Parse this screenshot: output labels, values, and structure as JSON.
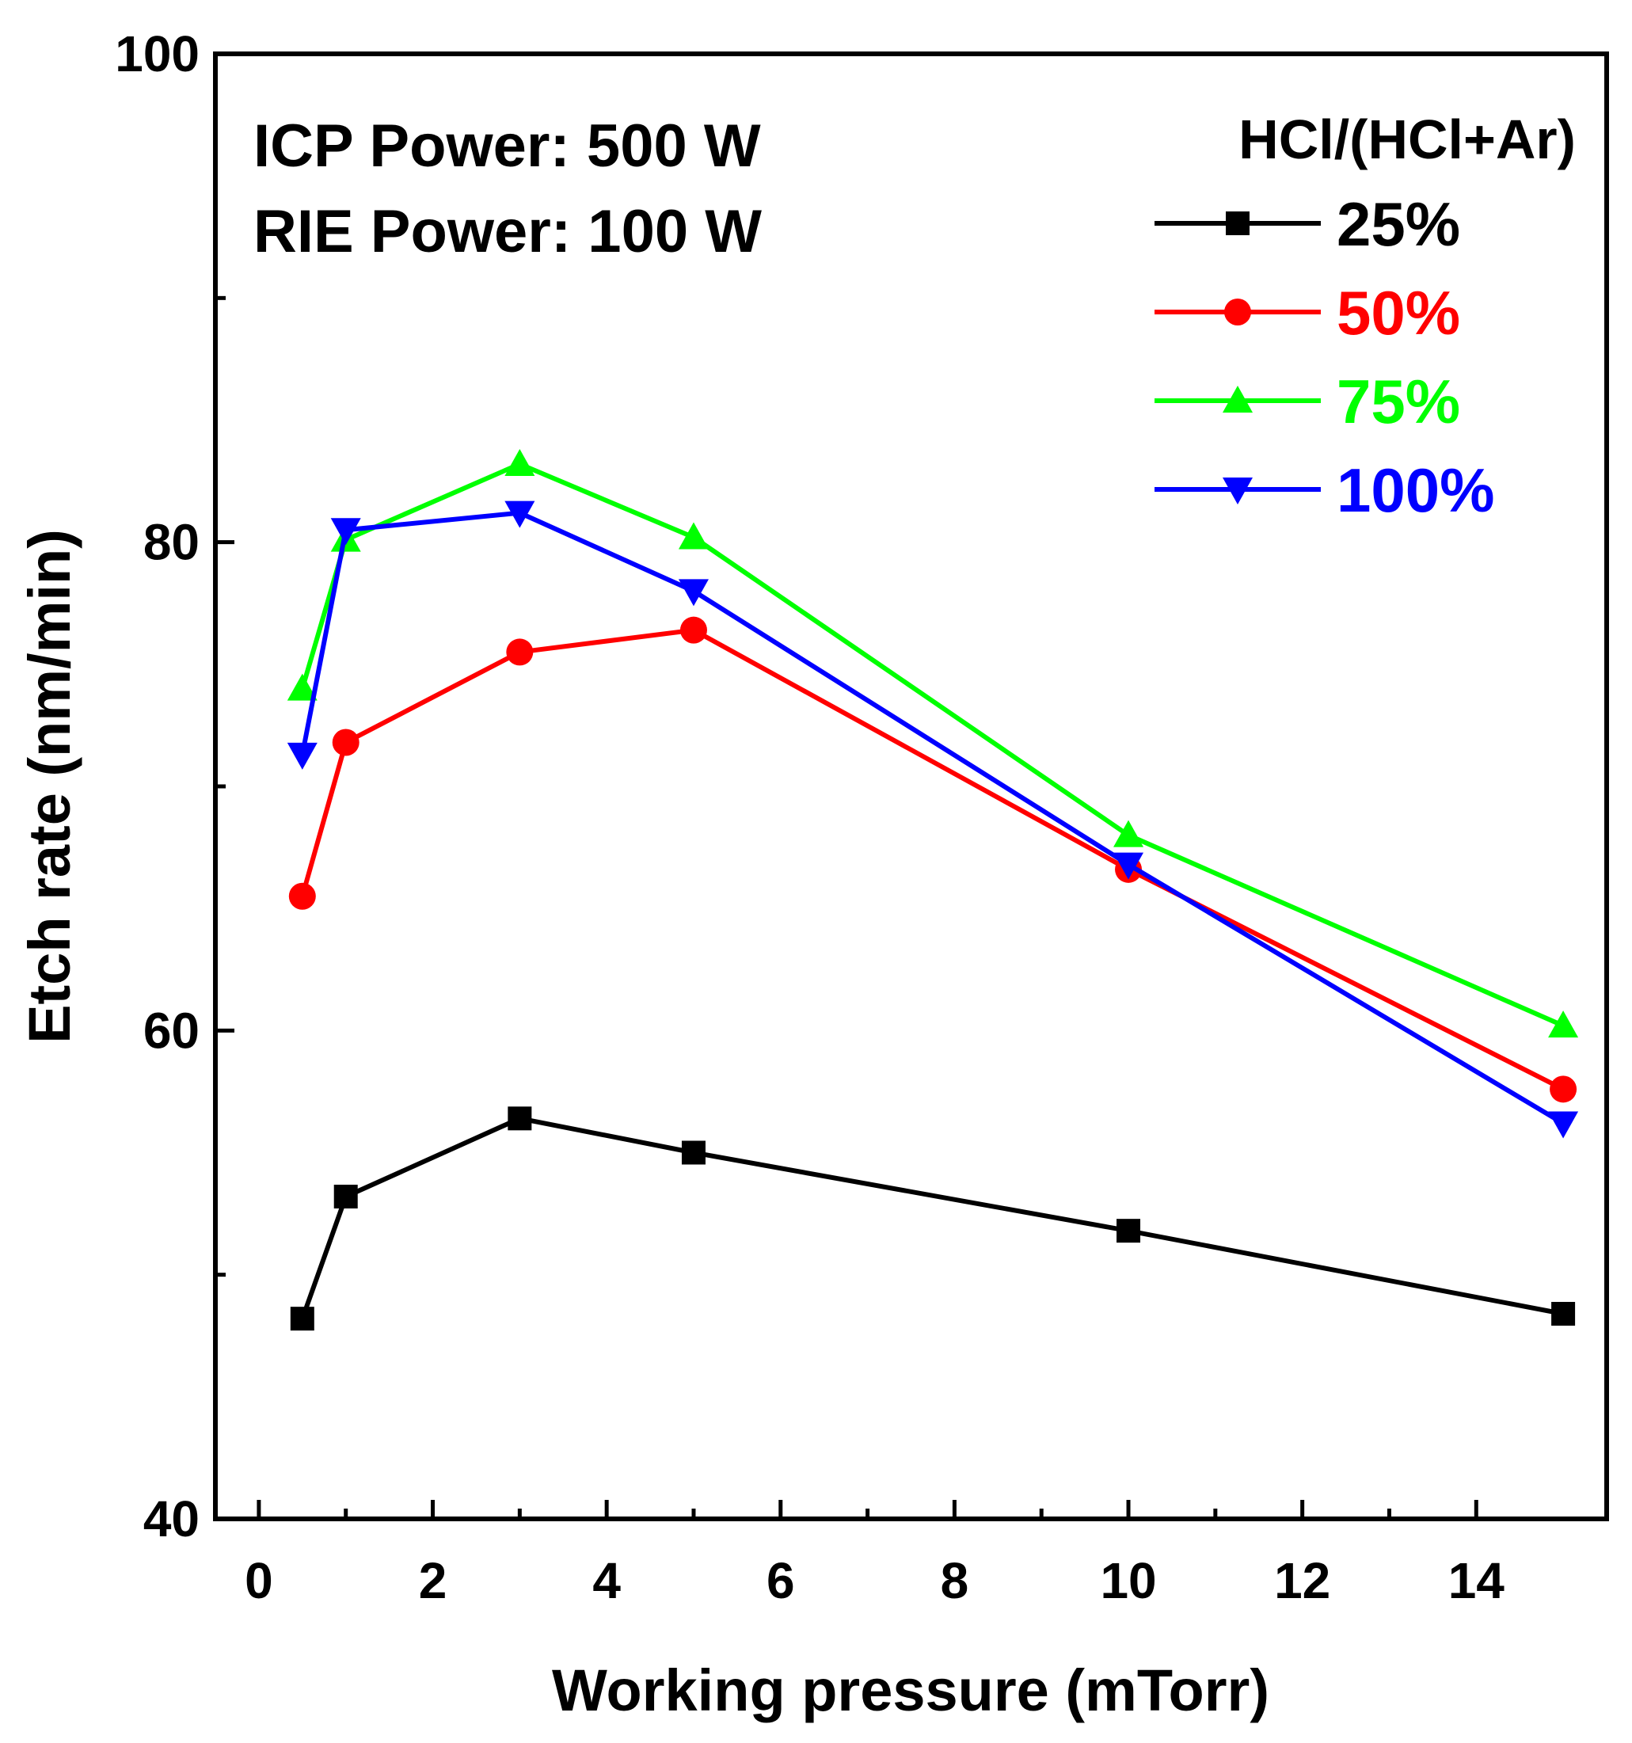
{
  "chart_data": {
    "type": "line",
    "xlabel": "Working pressure (mTorr)",
    "ylabel": "Etch rate (nm/min)",
    "xlim": [
      -0.5,
      15.5
    ],
    "ylim": [
      40,
      100
    ],
    "x_ticks": [
      0,
      2,
      4,
      6,
      8,
      10,
      12,
      14
    ],
    "x_tick_labels": [
      "0",
      "2",
      "4",
      "6",
      "8",
      "10",
      "12",
      "14"
    ],
    "y_ticks": [
      40,
      60,
      80,
      100
    ],
    "y_tick_labels": [
      "40",
      "60",
      "80",
      "100"
    ],
    "annotations": [
      "ICP Power: 500 W",
      "RIE Power: 100 W"
    ],
    "legend": {
      "title": "HCl/(HCl+Ar)",
      "position": "top-right"
    },
    "x": [
      0.5,
      1,
      3,
      5,
      10,
      15
    ],
    "series": [
      {
        "name": "25%",
        "color": "#000000",
        "marker": "square",
        "values": [
          48.2,
          53.2,
          56.4,
          55.0,
          51.8,
          48.4
        ]
      },
      {
        "name": "50%",
        "color": "#ff0000",
        "marker": "circle",
        "values": [
          65.5,
          71.8,
          75.5,
          76.4,
          66.6,
          57.6
        ]
      },
      {
        "name": "75%",
        "color": "#00ff00",
        "marker": "triangle-up",
        "values": [
          74.0,
          80.1,
          83.2,
          80.2,
          68.0,
          60.2
        ]
      },
      {
        "name": "100%",
        "color": "#0000ff",
        "marker": "triangle-down",
        "values": [
          71.3,
          80.5,
          81.2,
          78.0,
          66.8,
          56.2
        ]
      }
    ]
  }
}
